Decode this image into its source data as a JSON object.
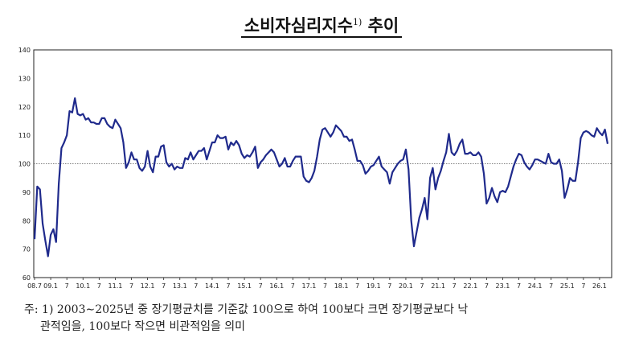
{
  "title": {
    "text": "소비자심리지수",
    "footnote_mark": "1)",
    "suffix": "추이"
  },
  "note": {
    "line1": "주: 1) 2003∼2025년 중 장기평균치를 기준값 100으로 하여 100보다 크면 장기평균보다 낙",
    "line2": "관적임을, 100보다 작으면 비관적임을 의미"
  },
  "colors": {
    "line": "#1f2a8c",
    "reference": "#555555",
    "frame": "#222222"
  },
  "chart_data": {
    "type": "line",
    "title": "소비자심리지수 추이",
    "xlabel": "",
    "ylabel": "",
    "ylim": [
      60,
      140
    ],
    "yticks": [
      60,
      70,
      80,
      90,
      100,
      110,
      120,
      130,
      140
    ],
    "reference_line": 100,
    "x_tick_labels": [
      "08.7",
      "09.1",
      "7",
      "10.1",
      "7",
      "11.1",
      "7",
      "12.1",
      "7",
      "13.1",
      "7",
      "14.1",
      "7",
      "15.1",
      "7",
      "16.1",
      "7",
      "17.1",
      "7",
      "18.1",
      "7",
      "19.1",
      "7",
      "20.1",
      "7",
      "21.1",
      "7",
      "22.1",
      "7",
      "23.1",
      "7",
      "24.1",
      "7",
      "25.1",
      "7",
      "26.1"
    ],
    "x_start": "2008.7",
    "values": [
      73.5,
      92,
      91,
      79,
      73,
      67.5,
      75,
      77,
      72.5,
      93,
      105.5,
      107.5,
      110,
      118.5,
      118,
      123,
      117.5,
      117,
      117.5,
      115.5,
      116,
      114.5,
      114.5,
      114,
      114,
      116,
      116,
      114,
      113,
      112.5,
      115.5,
      114,
      112.5,
      107.5,
      98.5,
      100.5,
      104,
      101.5,
      101.5,
      98.5,
      97.5,
      99,
      104.5,
      99,
      97,
      102.5,
      102.5,
      106,
      106.5,
      100.5,
      99,
      100,
      98,
      99,
      98.5,
      98.5,
      102,
      101.5,
      104,
      101.5,
      103,
      104.5,
      104.5,
      105.5,
      101.5,
      104.5,
      107.5,
      107.5,
      110,
      109,
      109,
      109.5,
      105,
      107.5,
      106.5,
      108,
      106.5,
      103.5,
      102,
      103,
      102.5,
      104,
      106,
      98.5,
      100.5,
      101.5,
      103,
      104,
      105,
      104,
      101.5,
      99,
      100,
      102,
      99,
      99,
      101,
      102.5,
      102.5,
      102.5,
      95.5,
      94,
      93.5,
      95,
      97.5,
      102.5,
      108.5,
      112,
      112.5,
      111,
      109.5,
      111,
      113.5,
      112.5,
      111.5,
      109.5,
      109.5,
      108,
      108.5,
      105,
      101,
      101,
      99.5,
      96.5,
      97.5,
      99,
      99.5,
      101,
      102.5,
      99,
      98,
      97,
      93,
      97,
      98.5,
      100,
      101,
      101.5,
      105,
      98,
      80,
      71,
      76,
      81,
      84,
      88,
      80.5,
      95,
      98.5,
      91,
      95,
      97.5,
      101,
      104,
      110.5,
      104,
      103,
      104.5,
      107,
      108.5,
      103.5,
      103.5,
      104,
      103,
      103,
      104,
      102.5,
      96.5,
      86,
      88,
      91.5,
      88.5,
      86.5,
      90,
      90.5,
      90,
      92,
      95.5,
      99,
      101.5,
      103.5,
      103,
      100.5,
      99,
      98,
      99.5,
      101.5,
      101.5,
      101,
      100.5,
      100,
      103.5,
      100.5,
      100,
      100,
      101.5,
      97.5,
      88,
      91,
      95,
      94,
      94,
      100.5,
      109,
      111,
      111.5,
      111,
      110,
      109.5,
      112.5,
      111,
      110,
      112,
      107
    ]
  }
}
